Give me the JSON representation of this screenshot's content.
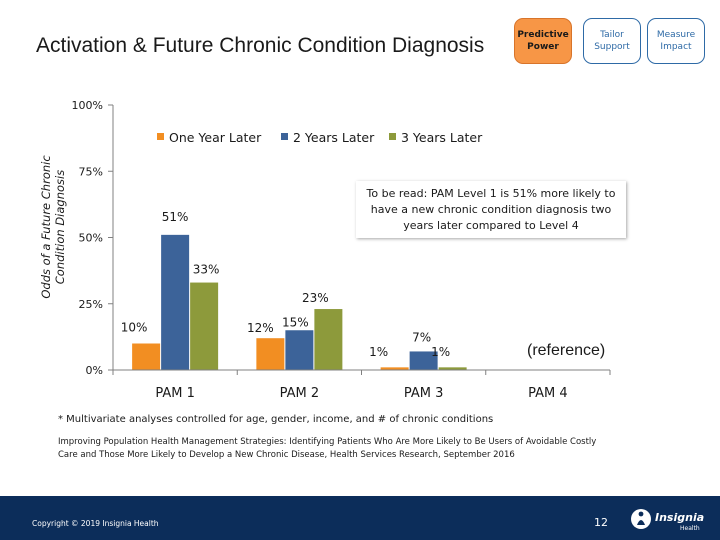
{
  "title": "Activation & Future Chronic Condition Diagnosis",
  "nav_boxes": [
    {
      "label": "Predictive Power",
      "active": true
    },
    {
      "label": "Tailor Support",
      "active": false
    },
    {
      "label": "Measure Impact",
      "active": false
    }
  ],
  "annotation": "To be read: PAM Level 1 is 51% more likely to have a new chronic condition diagnosis two years later compared to Level 4",
  "reference_label": "(reference)",
  "footnote": "* Multivariate analyses controlled for age, gender, income, and # of chronic conditions",
  "citation": "Improving Population Health Management Strategies: Identifying Patients Who Are More Likely to Be Users of Avoidable Costly Care and Those More Likely to Develop a New Chronic Disease, Health Services Research, September 2016",
  "copyright": "Copyright © 2019 Insignia Health",
  "page_number": "12",
  "logo_text": "Insignia",
  "logo_sub": "Health",
  "colors": {
    "accent": "#f79646",
    "footer": "#0c2d5a",
    "one_year": "#f28e22",
    "two_years": "#3c6399",
    "three_years": "#8d9a3b"
  },
  "chart_data": {
    "type": "bar",
    "title": "",
    "xlabel": "",
    "ylabel": "Odds of a Future Chronic Condition Diagnosis",
    "ylim": [
      0,
      100
    ],
    "yticks": [
      0,
      25,
      50,
      75,
      100
    ],
    "ytick_labels": [
      "0%",
      "25%",
      "50%",
      "75%",
      "100%"
    ],
    "categories": [
      "PAM 1",
      "PAM 2",
      "PAM 3",
      "PAM 4"
    ],
    "legend_position": "top",
    "grid": false,
    "series": [
      {
        "name": "One Year Later",
        "color": "#f28e22",
        "values": [
          10,
          12,
          1,
          null
        ],
        "labels": [
          "10%",
          "12%",
          "1%",
          ""
        ]
      },
      {
        "name": "2 Years Later",
        "color": "#3c6399",
        "values": [
          51,
          15,
          7,
          null
        ],
        "labels": [
          "51%",
          "15%",
          "7%",
          ""
        ]
      },
      {
        "name": "3 Years Later",
        "color": "#8d9a3b",
        "values": [
          33,
          23,
          1,
          null
        ],
        "labels": [
          "33%",
          "23%",
          "1%",
          ""
        ]
      }
    ]
  }
}
